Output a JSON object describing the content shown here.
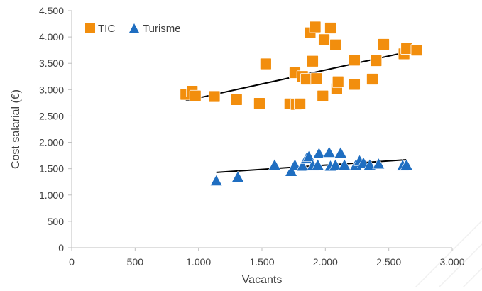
{
  "chart_data": {
    "type": "scatter",
    "xlabel": "Vacants",
    "ylabel": "Cost salarial (€)",
    "xlim": [
      0,
      3000
    ],
    "ylim": [
      0,
      4500
    ],
    "x_ticks": [
      0,
      500,
      1000,
      1500,
      2000,
      2500,
      3000
    ],
    "x_tick_labels": [
      "0",
      "500",
      "1.000",
      "1.500",
      "2.000",
      "2.500",
      "3.000"
    ],
    "y_ticks": [
      0,
      500,
      1000,
      1500,
      2000,
      2500,
      3000,
      3500,
      4000,
      4500
    ],
    "y_tick_labels": [
      "0",
      "500",
      "1.000",
      "1.500",
      "2.000",
      "2.500",
      "3.000",
      "3.500",
      "4.000",
      "4.500"
    ],
    "grid": false,
    "legend_position": "top-left",
    "series": [
      {
        "name": "TIC",
        "marker": "square",
        "color": "#F28E0D",
        "points": [
          [
            900,
            2910
          ],
          [
            950,
            2970
          ],
          [
            975,
            2880
          ],
          [
            1125,
            2870
          ],
          [
            1300,
            2810
          ],
          [
            1480,
            2740
          ],
          [
            1530,
            3490
          ],
          [
            1720,
            2730
          ],
          [
            1760,
            3320
          ],
          [
            1770,
            2720
          ],
          [
            1800,
            2730
          ],
          [
            1820,
            3250
          ],
          [
            1850,
            3200
          ],
          [
            1880,
            4080
          ],
          [
            1900,
            3540
          ],
          [
            1920,
            4190
          ],
          [
            1930,
            3210
          ],
          [
            1980,
            2880
          ],
          [
            1990,
            3950
          ],
          [
            2040,
            4170
          ],
          [
            2080,
            3850
          ],
          [
            2090,
            3020
          ],
          [
            2100,
            3150
          ],
          [
            2230,
            3560
          ],
          [
            2230,
            3100
          ],
          [
            2370,
            3200
          ],
          [
            2400,
            3550
          ],
          [
            2460,
            3860
          ],
          [
            2620,
            3680
          ],
          [
            2640,
            3780
          ],
          [
            2720,
            3750
          ]
        ],
        "trend": [
          [
            900,
            2790
          ],
          [
            2730,
            3760
          ]
        ]
      },
      {
        "name": "Turisme",
        "marker": "triangle",
        "color": "#1F6EC1",
        "points": [
          [
            1140,
            1260
          ],
          [
            1310,
            1330
          ],
          [
            1600,
            1560
          ],
          [
            1730,
            1440
          ],
          [
            1760,
            1560
          ],
          [
            1820,
            1540
          ],
          [
            1850,
            1680
          ],
          [
            1870,
            1720
          ],
          [
            1900,
            1550
          ],
          [
            1940,
            1560
          ],
          [
            1950,
            1780
          ],
          [
            2030,
            1800
          ],
          [
            2040,
            1540
          ],
          [
            2080,
            1560
          ],
          [
            2120,
            1790
          ],
          [
            2150,
            1560
          ],
          [
            2240,
            1560
          ],
          [
            2270,
            1640
          ],
          [
            2300,
            1600
          ],
          [
            2350,
            1560
          ],
          [
            2420,
            1580
          ],
          [
            2610,
            1550
          ],
          [
            2640,
            1560
          ]
        ],
        "trend": [
          [
            1140,
            1430
          ],
          [
            2640,
            1670
          ]
        ]
      }
    ]
  }
}
